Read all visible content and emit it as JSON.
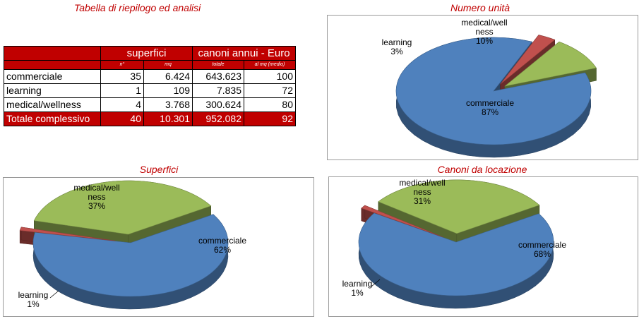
{
  "table": {
    "title": "Tabella di riepilogo ed analisi",
    "group_headers": [
      "superfici",
      "canoni annui - Euro"
    ],
    "sub_headers": [
      "n°",
      "mq",
      "totale",
      "al mq (medio)"
    ],
    "rows": [
      {
        "label": "commerciale",
        "n": "35",
        "mq": "6.424",
        "totale": "643.623",
        "al_mq": "100"
      },
      {
        "label": "learning",
        "n": "1",
        "mq": "109",
        "totale": "7.835",
        "al_mq": "72"
      },
      {
        "label": "medical/wellness",
        "n": "4",
        "mq": "3.768",
        "totale": "300.624",
        "al_mq": "80"
      }
    ],
    "total": {
      "label": "Totale complessivo",
      "n": "40",
      "mq": "10.301",
      "totale": "952.082",
      "al_mq": "92"
    }
  },
  "chart_data": [
    {
      "type": "pie",
      "title": "Numero unità",
      "slices": [
        {
          "label": [
            "commerciale",
            "87%"
          ],
          "value": 87,
          "color": "#4f81bd"
        },
        {
          "label": [
            "learning",
            "3%"
          ],
          "value": 3,
          "color": "#c0504d"
        },
        {
          "label": [
            "medical/well",
            "ness",
            "10%"
          ],
          "value": 10,
          "color": "#9bbb59"
        }
      ]
    },
    {
      "type": "pie",
      "title": "Superfici",
      "slices": [
        {
          "label": [
            "commerciale",
            "62%"
          ],
          "value": 62,
          "color": "#4f81bd"
        },
        {
          "label": [
            "learning",
            "1%"
          ],
          "value": 1,
          "color": "#c0504d"
        },
        {
          "label": [
            "medical/well",
            "ness",
            "37%"
          ],
          "value": 37,
          "color": "#9bbb59"
        }
      ]
    },
    {
      "type": "pie",
      "title": "Canoni da locazione",
      "slices": [
        {
          "label": [
            "commerciale",
            "68%"
          ],
          "value": 68,
          "color": "#4f81bd"
        },
        {
          "label": [
            "learning",
            "1%"
          ],
          "value": 1,
          "color": "#c0504d"
        },
        {
          "label": [
            "medical/well",
            "ness",
            "31%"
          ],
          "value": 31,
          "color": "#9bbb59"
        }
      ]
    }
  ]
}
